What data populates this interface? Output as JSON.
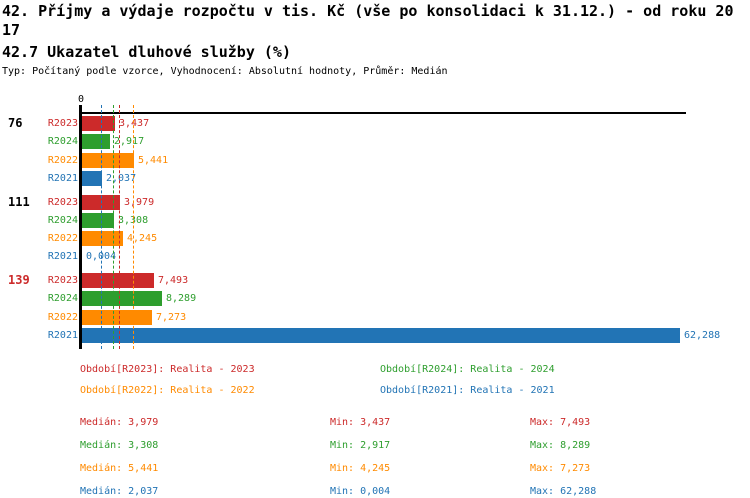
{
  "header": {
    "title_line1": "42. Příjmy a výdaje rozpočtu v tis. Kč (vše po konsolidaci k 31.12.) - od roku 20",
    "title_line2": "17",
    "subtitle": "42.7 Ukazatel dluhové služby (%)",
    "meta": "Typ: Počítaný podle vzorce, Vyhodnocení: Absolutní hodnoty, Průměr: Medián"
  },
  "colors": {
    "R2023": "#CC2A2A",
    "R2024": "#2E9E2E",
    "R2022": "#FF8A00",
    "R2021": "#2274B5",
    "axis": "#000000",
    "highlight": "#CC2A2A"
  },
  "chart_data": {
    "type": "bar",
    "orientation": "horizontal",
    "title": "42.7 Ukazatel dluhové služby (%)",
    "axis_zero_label": "0",
    "x_range": [
      0,
      63
    ],
    "grid": false,
    "series": [
      "R2023",
      "R2024",
      "R2022",
      "R2021"
    ],
    "groups": [
      {
        "label": "76",
        "highlight": false,
        "values": [
          3.437,
          2.917,
          5.441,
          2.037
        ],
        "value_labels": [
          "3,437",
          "2,917",
          "5,441",
          "2,037"
        ]
      },
      {
        "label": "111",
        "highlight": false,
        "values": [
          3.979,
          3.308,
          4.245,
          0.004
        ],
        "value_labels": [
          "3,979",
          "3,308",
          "4,245",
          "0,004"
        ]
      },
      {
        "label": "139",
        "highlight": true,
        "values": [
          7.493,
          8.289,
          7.273,
          62.288
        ],
        "value_labels": [
          "7,493",
          "8,289",
          "7,273",
          "62,288"
        ]
      }
    ],
    "median_lines": [
      3.979,
      3.308,
      5.441,
      2.037
    ]
  },
  "legend": {
    "items": [
      {
        "series": "R2023",
        "label": "Období[R2023]: Realita - 2023"
      },
      {
        "series": "R2024",
        "label": "Období[R2024]: Realita - 2024"
      },
      {
        "series": "R2022",
        "label": "Období[R2022]: Realita - 2022"
      },
      {
        "series": "R2021",
        "label": "Období[R2021]: Realita - 2021"
      }
    ]
  },
  "stats": {
    "rows": [
      {
        "series": "R2023",
        "median": "Medián: 3,979",
        "min": "Min: 3,437",
        "max": "Max: 7,493"
      },
      {
        "series": "R2024",
        "median": "Medián: 3,308",
        "min": "Min: 2,917",
        "max": "Max: 8,289"
      },
      {
        "series": "R2022",
        "median": "Medián: 5,441",
        "min": "Min: 4,245",
        "max": "Max: 7,273"
      },
      {
        "series": "R2021",
        "median": "Medián: 2,037",
        "min": "Min: 0,004",
        "max": "Max: 62,288"
      }
    ]
  }
}
